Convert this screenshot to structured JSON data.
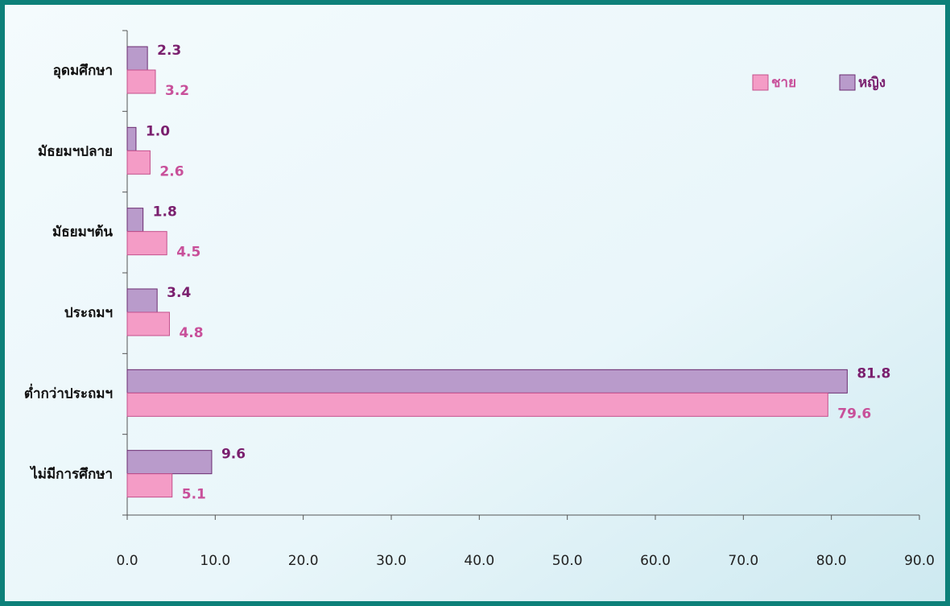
{
  "chart_data": {
    "type": "bar",
    "orientation": "horizontal",
    "categories": [
      "อุดมศึกษา",
      "มัธยมฯปลาย",
      "มัธยมฯต้น",
      "ประถมฯ",
      "ต่ำกว่าประถมฯ",
      "ไม่มีการศึกษา"
    ],
    "series": [
      {
        "name": "หญิง",
        "color": "#b99bcb",
        "values": [
          2.3,
          1.0,
          1.8,
          3.4,
          81.8,
          9.6
        ],
        "value_labels": [
          "2.3",
          "1.0",
          "1.8",
          "3.4",
          "81.8",
          "9.6"
        ]
      },
      {
        "name": "ชาย",
        "color": "#f49cc6",
        "values": [
          3.2,
          2.6,
          4.5,
          4.8,
          79.6,
          5.1
        ],
        "value_labels": [
          "3.2",
          "2.6",
          "4.5",
          "4.8",
          "79.6",
          "5.1"
        ]
      }
    ],
    "xlim": [
      0,
      90
    ],
    "xticks": [
      {
        "value": 0,
        "label": "0.0"
      },
      {
        "value": 10,
        "label": "10.0"
      },
      {
        "value": 20,
        "label": "20.0"
      },
      {
        "value": 30,
        "label": "30.0"
      },
      {
        "value": 40,
        "label": "40.0"
      },
      {
        "value": 50,
        "label": "50.0"
      },
      {
        "value": 60,
        "label": "60.0"
      },
      {
        "value": 70,
        "label": "70.0"
      },
      {
        "value": 80,
        "label": "80.0"
      },
      {
        "value": 90,
        "label": "90.0"
      }
    ],
    "legend": "top-right"
  }
}
